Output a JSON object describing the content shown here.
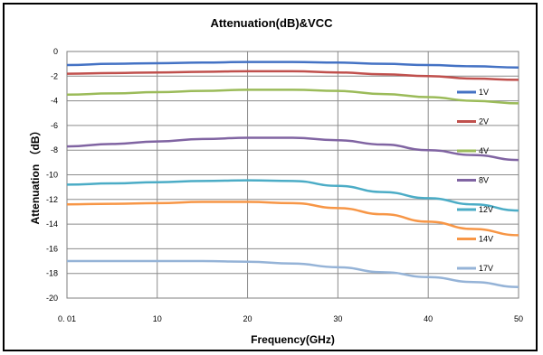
{
  "chart_data": {
    "type": "line",
    "title": "Attenuation(dB)&VCC",
    "xlabel": "Frequency(GHz)",
    "ylabel": "Attenuation （dB）",
    "xlim": [
      0.01,
      50
    ],
    "ylim": [
      -20,
      0
    ],
    "x_ticks": [
      0.01,
      10,
      20,
      30,
      40,
      50
    ],
    "x_tick_labels": [
      "0. 01",
      "10",
      "20",
      "30",
      "40",
      "50"
    ],
    "y_ticks": [
      0,
      -2,
      -4,
      -6,
      -8,
      -10,
      -12,
      -14,
      -16,
      -18,
      -20
    ],
    "y_tick_labels": [
      "0",
      "-2",
      "-4",
      "-6",
      "-8",
      "-10",
      "-12",
      "-14",
      "-16",
      "-18",
      "-20"
    ],
    "grid": true,
    "legend_position": "right",
    "x": [
      0.01,
      5,
      10,
      15,
      20,
      25,
      30,
      35,
      40,
      45,
      50
    ],
    "series": [
      {
        "name": "1V",
        "color": "#4472c4",
        "values": [
          -1.1,
          -1.0,
          -0.95,
          -0.9,
          -0.85,
          -0.85,
          -0.9,
          -1.0,
          -1.1,
          -1.2,
          -1.3
        ]
      },
      {
        "name": "2V",
        "color": "#c0504d",
        "values": [
          -1.8,
          -1.75,
          -1.7,
          -1.65,
          -1.6,
          -1.6,
          -1.7,
          -1.85,
          -2.0,
          -2.2,
          -2.3
        ]
      },
      {
        "name": "4V",
        "color": "#9bbb59",
        "values": [
          -3.5,
          -3.4,
          -3.3,
          -3.2,
          -3.1,
          -3.1,
          -3.2,
          -3.45,
          -3.7,
          -4.0,
          -4.2
        ]
      },
      {
        "name": "8V",
        "color": "#8064a2",
        "values": [
          -7.7,
          -7.5,
          -7.3,
          -7.1,
          -7.0,
          -7.0,
          -7.2,
          -7.55,
          -8.0,
          -8.4,
          -8.8
        ]
      },
      {
        "name": "12V",
        "color": "#4bacc6",
        "values": [
          -10.8,
          -10.7,
          -10.6,
          -10.5,
          -10.45,
          -10.5,
          -10.9,
          -11.4,
          -11.9,
          -12.4,
          -12.9
        ]
      },
      {
        "name": "14V",
        "color": "#f79646",
        "values": [
          -12.4,
          -12.35,
          -12.3,
          -12.2,
          -12.2,
          -12.3,
          -12.7,
          -13.2,
          -13.8,
          -14.4,
          -14.9
        ]
      },
      {
        "name": "17V",
        "color": "#95b3d7",
        "values": [
          -17.0,
          -17.0,
          -17.0,
          -17.0,
          -17.05,
          -17.2,
          -17.5,
          -17.9,
          -18.3,
          -18.7,
          -19.1
        ]
      }
    ]
  }
}
